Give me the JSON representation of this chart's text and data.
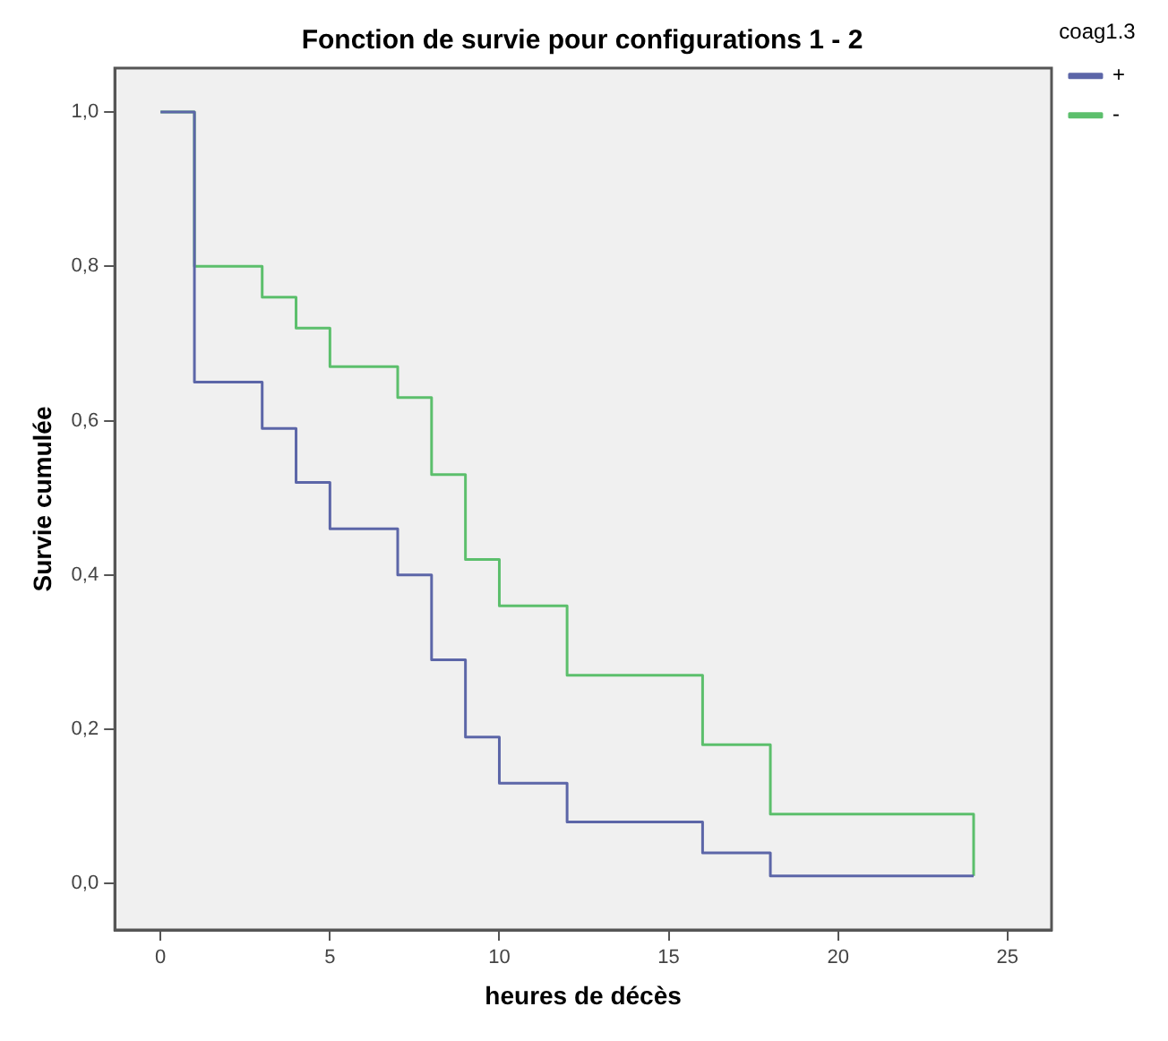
{
  "chart_data": {
    "type": "step",
    "title": "Fonction de survie pour configurations 1 - 2",
    "xlabel": "heures de décès",
    "ylabel": "Survie cumulée",
    "legend_title": "coag1.3",
    "legend": "top right",
    "grid": false,
    "marker": "none",
    "xlim": [
      -1.35,
      26.3
    ],
    "xticks": [
      0,
      5,
      10,
      15,
      20,
      25
    ],
    "ylim": [
      -0.06,
      1.057
    ],
    "yticks": [
      {
        "value": 0,
        "label": "0,0"
      },
      {
        "value": 0.2,
        "label": "0,2"
      },
      {
        "value": 0.4,
        "label": "0,4"
      },
      {
        "value": 0.6,
        "label": "0,6"
      },
      {
        "value": 0.8,
        "label": "0,8"
      },
      {
        "value": 1,
        "label": "1,0"
      }
    ],
    "series": [
      {
        "name": "+",
        "color": "#5c66a8",
        "x": [
          0,
          1,
          3,
          4,
          5,
          7,
          8,
          9,
          10,
          12,
          16,
          18,
          24
        ],
        "values": [
          1,
          0.65,
          0.59,
          0.52,
          0.46,
          0.4,
          0.29,
          0.19,
          0.13,
          0.08,
          0.04,
          0.01,
          0.01
        ]
      },
      {
        "name": "-",
        "color": "#5cbf6c",
        "x": [
          0,
          1,
          3,
          4,
          5,
          7,
          8,
          9,
          10,
          12,
          16,
          18,
          24,
          24
        ],
        "values": [
          1,
          0.8,
          0.76,
          0.72,
          0.67,
          0.63,
          0.53,
          0.42,
          0.36,
          0.27,
          0.18,
          0.09,
          0.09,
          0.01
        ]
      }
    ]
  }
}
